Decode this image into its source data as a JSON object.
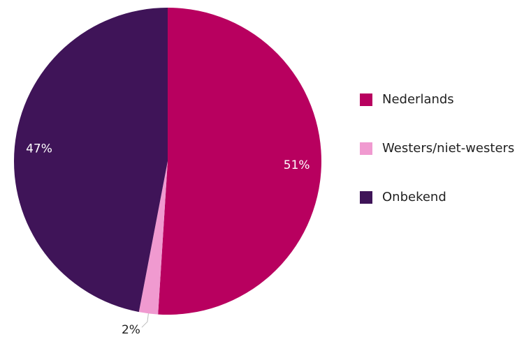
{
  "chart_data": {
    "type": "pie",
    "categories": [
      "Nederlands",
      "Westers/niet-westers",
      "Onbekend"
    ],
    "values": [
      51,
      2,
      47
    ],
    "value_labels": [
      "51%",
      "2%",
      "47%"
    ],
    "colors": [
      "#b8005f",
      "#f09ad0",
      "#3f1458"
    ],
    "legend": "right"
  }
}
